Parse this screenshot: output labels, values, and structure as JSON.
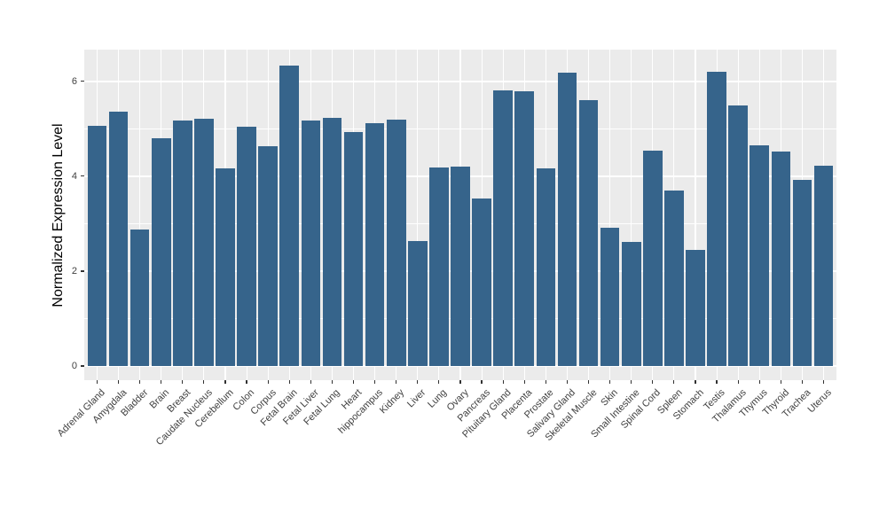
{
  "chart_data": {
    "type": "bar",
    "title": "",
    "xlabel": "",
    "ylabel": "Normalized Expression Level",
    "categories": [
      "Adrenal Gland",
      "Amygdala",
      "Bladder",
      "Brain",
      "Breast",
      "Caudate Nucleus",
      "Cerebellum",
      "Colon",
      "Corpus",
      "Fetal Brain",
      "Fetal Liver",
      "Fetal Lung",
      "Heart",
      "hippocampus",
      "Kidney",
      "Liver",
      "Lung",
      "Ovary",
      "Pancreas",
      "Pituitary Gland",
      "Placenta",
      "Prostate",
      "Salivary Gland",
      "Skeletal Muscle",
      "Skin",
      "Small Intestine",
      "Spinal Cord",
      "Spleen",
      "Stomach",
      "Testis",
      "Thalamus",
      "Thymus",
      "Thyroid",
      "Trachea",
      "Uterus"
    ],
    "values": [
      5.06,
      5.37,
      2.88,
      4.8,
      5.17,
      5.22,
      4.17,
      5.04,
      4.64,
      6.34,
      5.18,
      5.23,
      4.94,
      5.11,
      5.19,
      2.64,
      4.18,
      4.21,
      3.53,
      5.81,
      5.8,
      4.17,
      6.19,
      5.6,
      2.92,
      2.62,
      4.54,
      3.7,
      2.45,
      6.21,
      5.49,
      4.66,
      4.52,
      3.92,
      4.22
    ],
    "yticks": [
      0,
      2,
      4,
      6
    ],
    "yticks_minor": [
      1,
      3,
      5
    ],
    "ylim": [
      -0.3,
      6.67
    ],
    "bar_width_fraction": 0.9,
    "grid": "on",
    "legend": "none",
    "colors": {
      "bar_fill": "#36648B",
      "panel_background": "#EBEBEB",
      "gridline": "#FFFFFF",
      "axis_text": "#404040",
      "axis_title": "#000000",
      "figure_background": "#FFFFFF"
    }
  }
}
